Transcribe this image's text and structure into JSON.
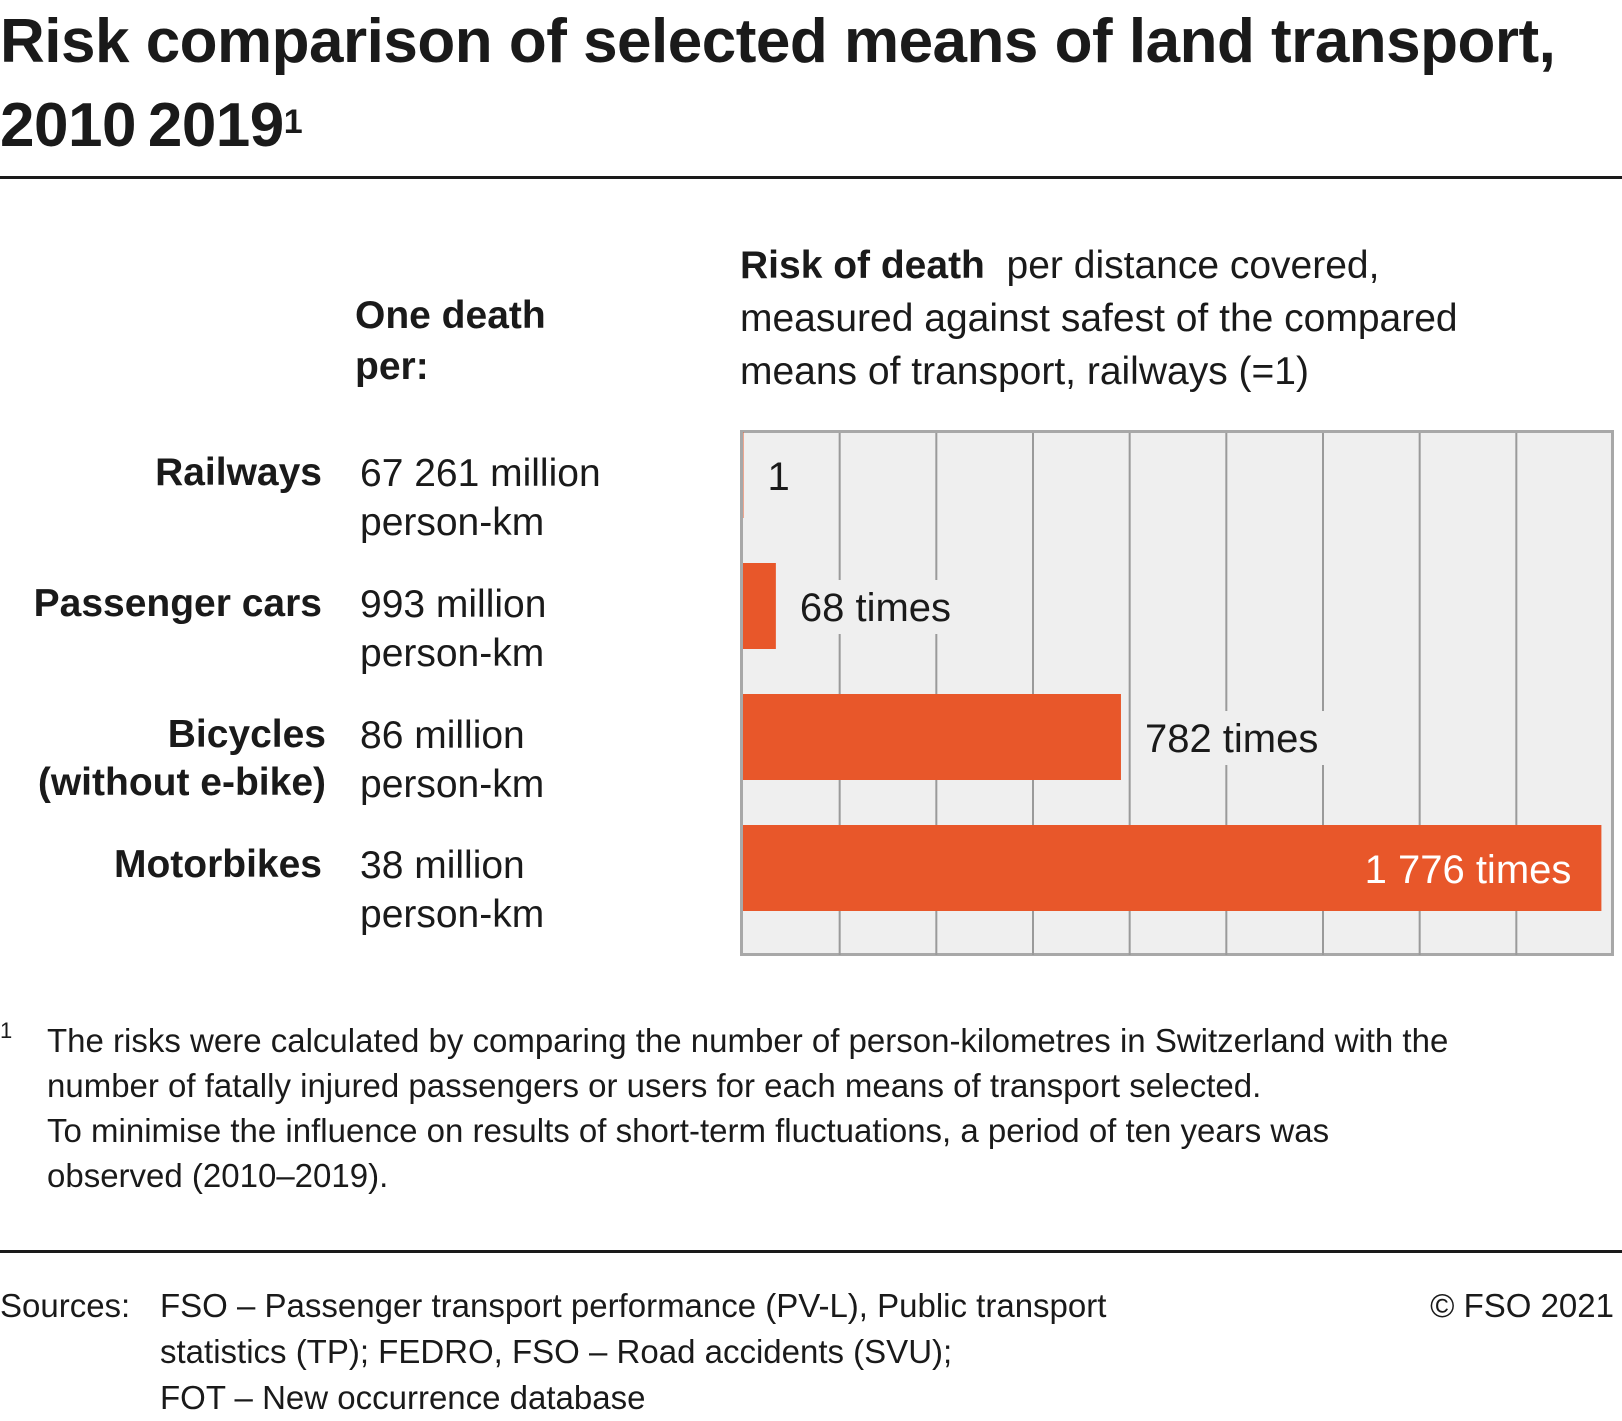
{
  "title": "Risk comparison of selected means of land transport, 2010 2019",
  "title_sup": "1",
  "column_header": {
    "line1": "One death",
    "line2": "per:"
  },
  "chart_header": {
    "bold": "Risk of death",
    "line1_rest": "per distance covered,",
    "line2": "measured against safest of the compared",
    "line3": "means of transport, railways (=1)"
  },
  "rows": [
    {
      "category": [
        "Railways"
      ],
      "value_line1": "67 261 million",
      "value_line2": "person-km"
    },
    {
      "category": [
        "Passenger cars"
      ],
      "value_line1": "993 million",
      "value_line2": "person-km"
    },
    {
      "category": [
        "Bicycles",
        "(without e-bike)"
      ],
      "value_line1": "86 million",
      "value_line2": "person-km"
    },
    {
      "category": [
        "Motorbikes"
      ],
      "value_line1": "38 million",
      "value_line2": "person-km"
    }
  ],
  "chart_data": {
    "type": "bar",
    "orientation": "horizontal",
    "categories": [
      "Railways",
      "Passenger cars",
      "Bicycles (without e-bike)",
      "Motorbikes"
    ],
    "values": [
      1,
      68,
      782,
      1776
    ],
    "data_labels": [
      "1",
      "68 times",
      "782 times",
      "1 776  times"
    ],
    "xlim": [
      0,
      1800
    ],
    "grid": true,
    "bar_color": "#e8572a",
    "plot_background": "#efefef"
  },
  "footnote": {
    "mark": "1",
    "line1": "The risks were calculated by comparing the number of person-kilometres in Switzerland with the",
    "line2": "number of fatally injured passengers or users for each means of transport selected.",
    "line3": "To minimise the influence on results of short-term fluctuations, a period of ten years was",
    "line4": "observed (2010–2019)."
  },
  "sources": {
    "label": "Sources:",
    "line1": "FSO – Passenger transport performance (PV-L), Public transport",
    "line2": "statistics (TP); FEDRO, FSO – Road accidents (SVU);",
    "line3": "FOT – New occurrence database"
  },
  "copyright": "© FSO 2021"
}
